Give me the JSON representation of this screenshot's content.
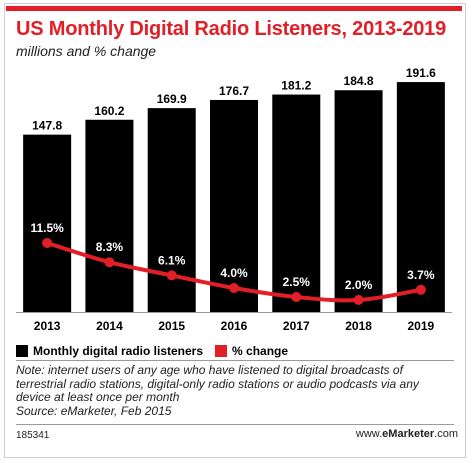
{
  "title": "US Monthly Digital Radio Listeners, 2013-2019",
  "subtitle": "millions and % change",
  "legend": {
    "bars_label": "Monthly digital radio listeners",
    "line_label": "% change"
  },
  "note": {
    "text": "Note: internet users of any age who have listened to digital broadcasts of terrestrial radio stations, digital-only radio stations or audio podcasts via any device at least once per month",
    "source": "Source: eMarketer, Feb 2015"
  },
  "footer": {
    "id": "185341",
    "brand_prefix": "www.",
    "brand_name": "eMarketer",
    "brand_suffix": ".com"
  },
  "colors": {
    "accent": "#e21f26",
    "bars": "#000000",
    "background": "#ffffff"
  },
  "chart_data": {
    "type": "bar",
    "categories": [
      "2013",
      "2014",
      "2015",
      "2016",
      "2017",
      "2018",
      "2019"
    ],
    "series": [
      {
        "name": "Monthly digital radio listeners",
        "type": "bar",
        "values": [
          147.8,
          160.2,
          169.9,
          176.7,
          181.2,
          184.8,
          191.6
        ],
        "labels": [
          "147.8",
          "160.2",
          "169.9",
          "176.7",
          "181.2",
          "184.8",
          "191.6"
        ]
      },
      {
        "name": "% change",
        "type": "line",
        "values": [
          11.5,
          8.3,
          6.1,
          4.0,
          2.5,
          2.0,
          3.7
        ],
        "labels": [
          "11.5%",
          "8.3%",
          "6.1%",
          "4.0%",
          "2.5%",
          "2.0%",
          "3.7%"
        ]
      }
    ],
    "ylim": [
      0,
      200
    ],
    "pct_ylim": [
      0,
      40
    ],
    "grid": false,
    "legend_position": "bottom-left"
  }
}
